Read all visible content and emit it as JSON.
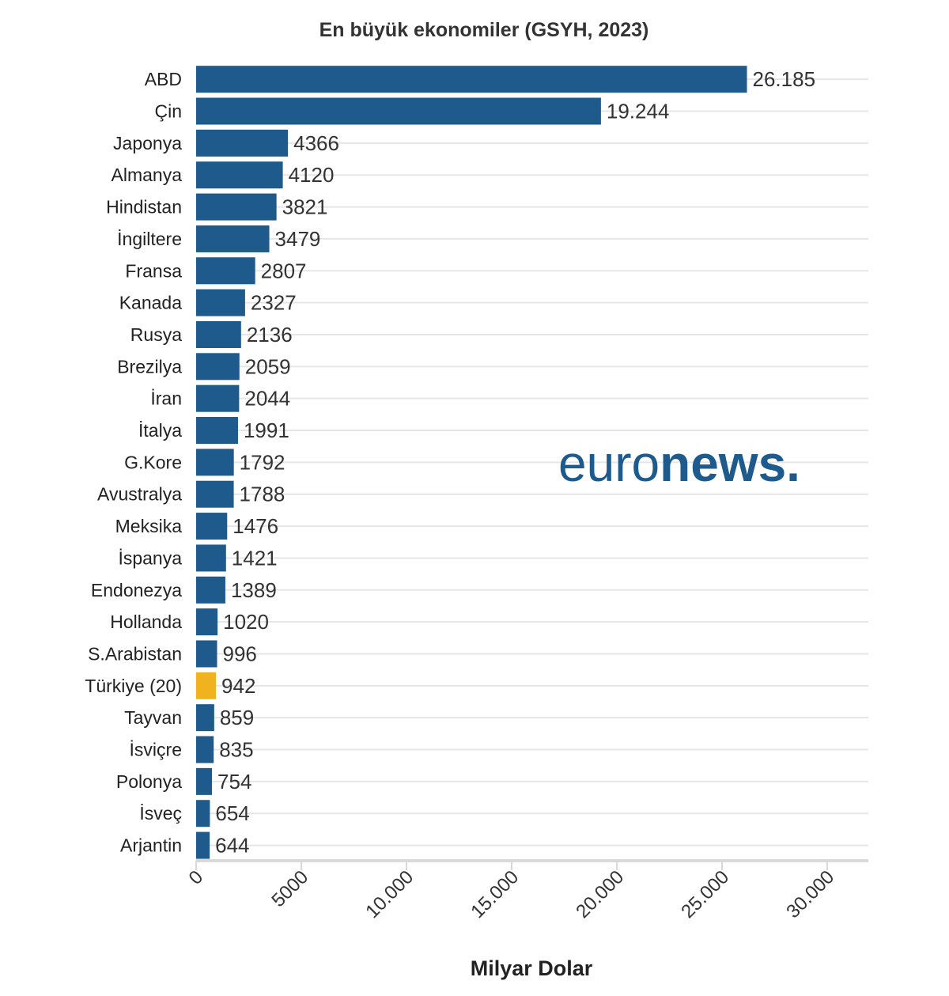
{
  "chart_data": {
    "type": "bar",
    "orientation": "horizontal",
    "title": "En büyük ekonomiler (GSYH, 2023)",
    "xlabel": "Milyar Dolar",
    "ylabel": "",
    "xlim": [
      0,
      30000
    ],
    "xticks": [
      0,
      5000,
      10000,
      15000,
      20000,
      25000,
      30000
    ],
    "xtick_labels": [
      "0",
      "5000",
      "10.000",
      "15.000",
      "20.000",
      "25.000",
      "30.000"
    ],
    "grid": true,
    "legend": "none",
    "categories": [
      "ABD",
      "Çin",
      "Japonya",
      "Almanya",
      "Hindistan",
      "İngiltere",
      "Fransa",
      "Kanada",
      "Rusya",
      "Brezilya",
      "İran",
      "İtalya",
      "G.Kore",
      "Avustralya",
      "Meksika",
      "İspanya",
      "Endonezya",
      "Hollanda",
      "S.Arabistan",
      "Türkiye (20)",
      "Tayvan",
      "İsviçre",
      "Polonya",
      "İsveç",
      "Arjantin"
    ],
    "values": [
      26185,
      19244,
      4366,
      4120,
      3821,
      3479,
      2807,
      2327,
      2136,
      2059,
      2044,
      1991,
      1792,
      1788,
      1476,
      1421,
      1389,
      1020,
      996,
      942,
      859,
      835,
      754,
      654,
      644
    ],
    "value_labels": [
      "26.185",
      "19.244",
      "4366",
      "4120",
      "3821",
      "3479",
      "2807",
      "2327",
      "2136",
      "2059",
      "2044",
      "1991",
      "1792",
      "1788",
      "1476",
      "1421",
      "1389",
      "1020",
      "996",
      "942",
      "859",
      "835",
      "754",
      "654",
      "644"
    ],
    "highlight_category": "Türkiye (20)",
    "colors": {
      "bar": "#1e5a8c",
      "highlight": "#f0b21e"
    }
  },
  "logo": {
    "part1": "euro",
    "part2": "news",
    "dot": ".",
    "color": "#1e5a8c"
  }
}
